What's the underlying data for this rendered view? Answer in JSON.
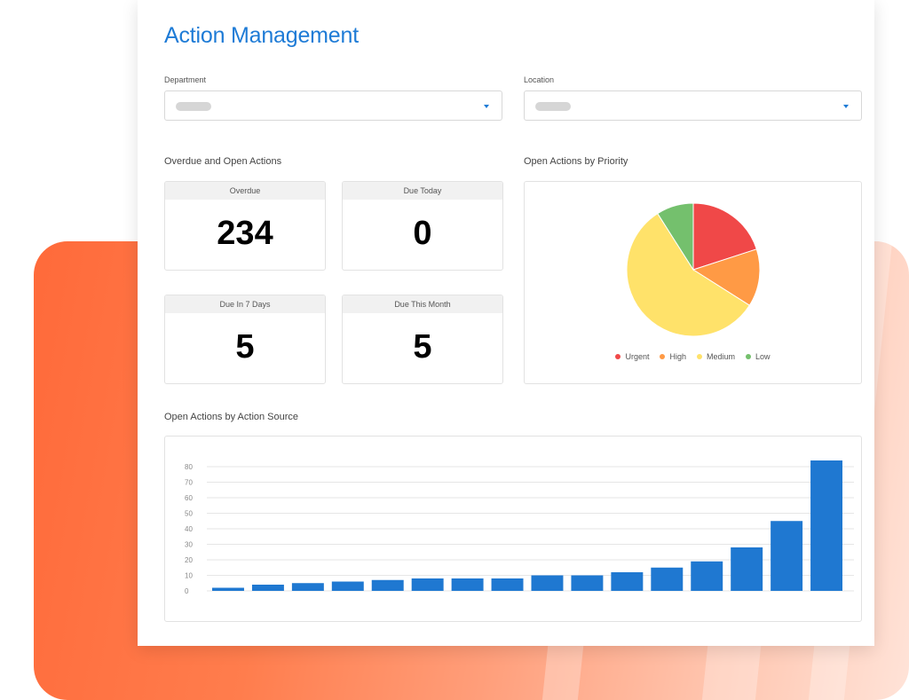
{
  "page": {
    "title": "Action Management"
  },
  "filters": {
    "department": {
      "label": "Department"
    },
    "location": {
      "label": "Location"
    }
  },
  "overdue_section": {
    "label": "Overdue and Open Actions",
    "stats": [
      {
        "label": "Overdue",
        "value": "234"
      },
      {
        "label": "Due Today",
        "value": "0"
      },
      {
        "label": "Due In 7 Days",
        "value": "5"
      },
      {
        "label": "Due This Month",
        "value": "5"
      }
    ]
  },
  "priority_section": {
    "label": "Open Actions by Priority"
  },
  "source_section": {
    "label": "Open Actions by Action Source"
  },
  "colors": {
    "accent": "#1e7bd6",
    "urgent": "#f04848",
    "high": "#ff9a45",
    "medium": "#ffe26a",
    "low": "#74c06d",
    "bar": "#1f78d1"
  },
  "chart_data": [
    {
      "type": "pie",
      "categories": [
        "Urgent",
        "High",
        "Medium",
        "Low"
      ],
      "values": [
        20,
        14,
        57,
        9
      ],
      "legend": "bottom"
    },
    {
      "type": "bar",
      "values": [
        2,
        4,
        5,
        6,
        7,
        8,
        8,
        8,
        10,
        10,
        12,
        15,
        19,
        28,
        45,
        84
      ],
      "yticks": [
        0,
        10,
        20,
        30,
        40,
        50,
        60,
        70,
        80
      ],
      "ylim": [
        0,
        88
      ],
      "grid": true
    }
  ]
}
